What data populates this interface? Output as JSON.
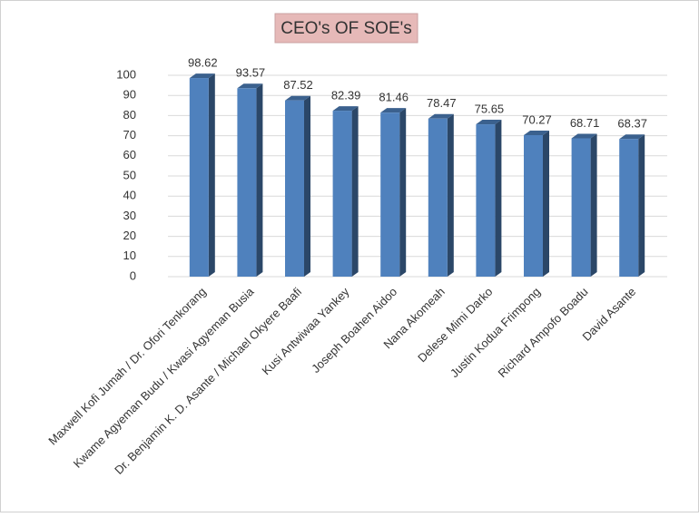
{
  "chart_data": {
    "type": "bar",
    "title": "CEO's OF SOE's",
    "categories": [
      "Maxwell Kofi Jumah /  Dr. Ofori Tenkorang",
      "Kwame Agyeman Budu / Kwasi Agyeman Busia",
      "Dr. Benjamin K. D. Asante / Michael Okyere Baafi",
      "Kusi Antwiwaa Yankey",
      "Joseph Boahen Aidoo",
      "Nana Akomeah",
      "Delese Mimi Darko",
      "Justin Kodua Frimpong",
      "Richard Ampofo Boadu",
      "David Asante"
    ],
    "values": [
      98.62,
      93.57,
      87.52,
      82.39,
      81.46,
      78.47,
      75.65,
      70.27,
      68.71,
      68.37
    ],
    "color": "#4f81bd",
    "ylim": [
      0,
      100
    ],
    "yticks": [
      0,
      10,
      20,
      30,
      40,
      50,
      60,
      70,
      80,
      90,
      100
    ],
    "grid": true
  }
}
